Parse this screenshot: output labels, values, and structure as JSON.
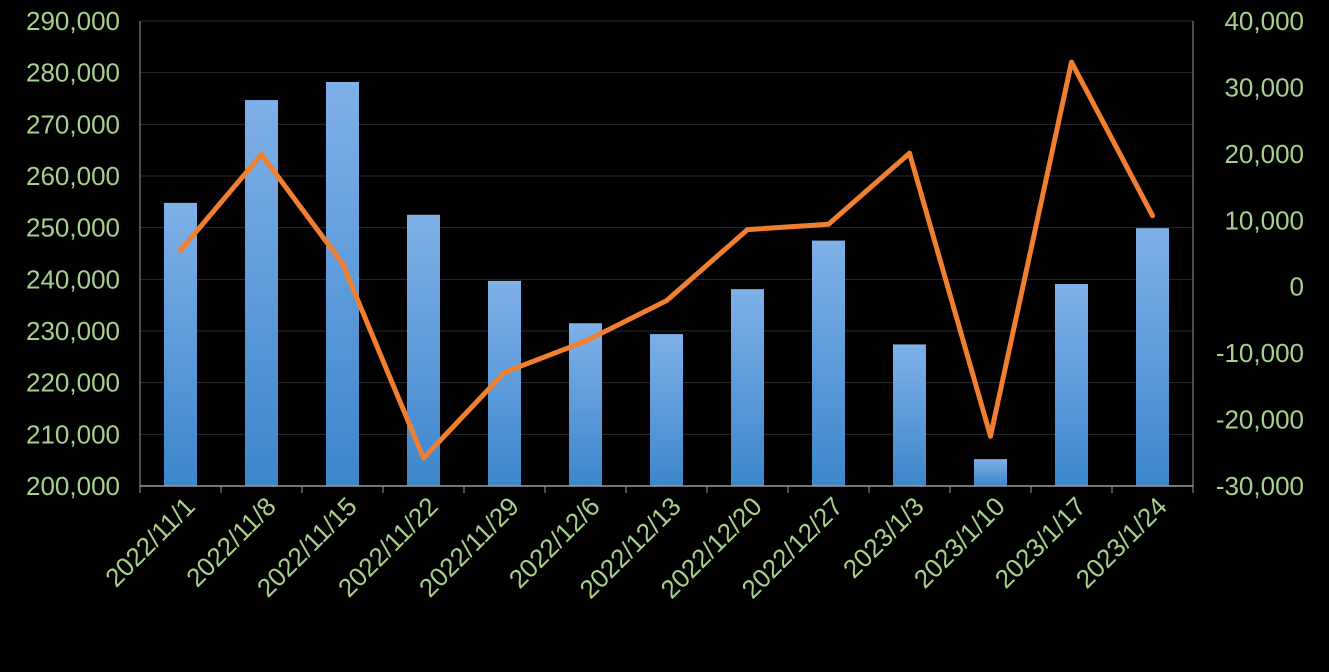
{
  "colors": {
    "background": "#000000",
    "bar_top": "#7fb0e8",
    "bar_bottom": "#3c86cc",
    "line": "#f07f30",
    "tick_label": "#a8d08d",
    "gridline": "#2a2a2a",
    "axis": "#9a9a9a"
  },
  "chart_data": {
    "type": "bar",
    "title": "",
    "xlabel": "",
    "ylabel": "",
    "y2label": "",
    "grid": true,
    "legend": "none",
    "categories": [
      "2022/11/1",
      "2022/11/8",
      "2022/11/15",
      "2022/11/22",
      "2022/11/29",
      "2022/12/6",
      "2022/12/13",
      "2022/12/20",
      "2022/12/27",
      "2023/1/3",
      "2023/1/10",
      "2023/1/17",
      "2023/1/24"
    ],
    "series": [
      {
        "type": "bar",
        "axis": "left",
        "values": [
          254800,
          274700,
          278200,
          252500,
          239700,
          231500,
          229400,
          238100,
          247500,
          227400,
          205200,
          239100,
          249900
        ]
      },
      {
        "type": "line",
        "axis": "right",
        "values": [
          5500,
          19900,
          3500,
          -25800,
          -12900,
          -8200,
          -2100,
          8600,
          9400,
          20100,
          -22500,
          33800,
          10700
        ]
      }
    ],
    "ylim": [
      200000,
      290000
    ],
    "y_ticks": [
      200000,
      210000,
      220000,
      230000,
      240000,
      250000,
      260000,
      270000,
      280000,
      290000
    ],
    "y_tick_labels": [
      "200,000",
      "210,000",
      "220,000",
      "230,000",
      "240,000",
      "250,000",
      "260,000",
      "270,000",
      "280,000",
      "290,000"
    ],
    "y2lim": [
      -30000,
      40000
    ],
    "y2_ticks": [
      -30000,
      -20000,
      -10000,
      0,
      10000,
      20000,
      30000,
      40000
    ],
    "y2_tick_labels": [
      "-30,000",
      "-20,000",
      "-10,000",
      "0",
      "10,000",
      "20,000",
      "30,000",
      "40,000"
    ]
  }
}
